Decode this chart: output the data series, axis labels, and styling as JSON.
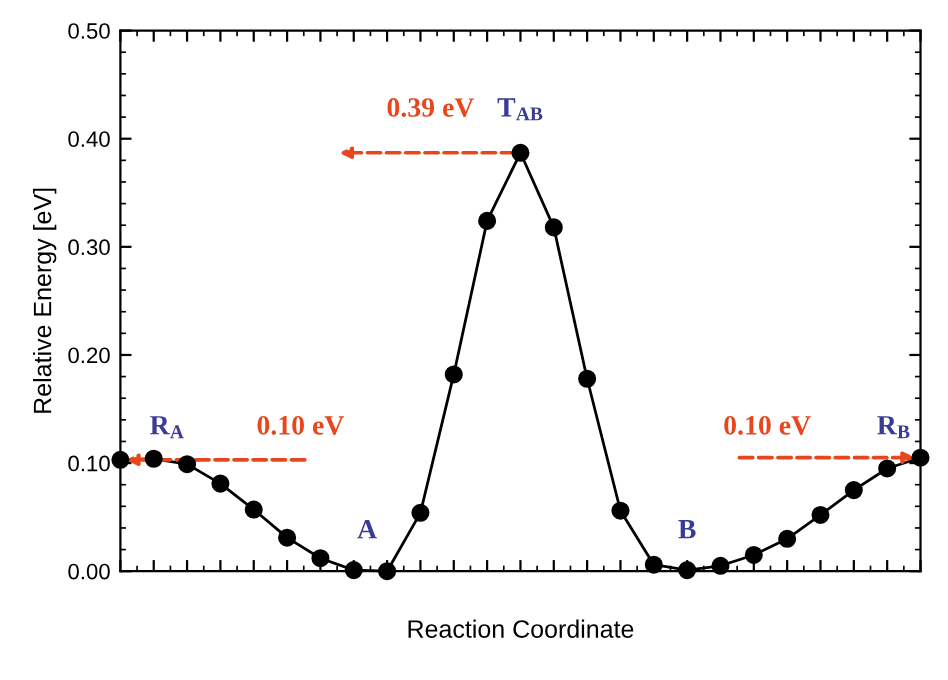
{
  "chart_data": {
    "type": "line",
    "xlabel": "Reaction Coordinate",
    "ylabel": "Relative Energy [eV]",
    "categories": [
      null,
      null,
      null,
      null,
      null,
      null,
      null,
      null,
      null,
      null,
      null,
      null,
      null,
      null,
      null,
      null,
      null,
      null,
      null,
      null,
      null,
      null,
      null,
      null,
      null
    ],
    "series": [
      {
        "color": "#000000",
        "marker": "circle",
        "line_style": "solid",
        "values": [
          0.103,
          0.104,
          0.099,
          0.081,
          0.057,
          0.031,
          0.012,
          0.001,
          0.0,
          0.054,
          0.182,
          0.324,
          0.387,
          0.318,
          0.178,
          0.056,
          0.006,
          0.001,
          0.005,
          0.015,
          0.03,
          0.052,
          0.075,
          0.095,
          0.105
        ]
      }
    ],
    "ylim": [
      0,
      0.5
    ],
    "yticks": [
      {
        "value": 0,
        "label": "0.00"
      },
      {
        "value": 0.1,
        "label": "0.10"
      },
      {
        "value": 0.2,
        "label": "0.20"
      },
      {
        "value": 0.3,
        "label": "0.30"
      },
      {
        "value": 0.4,
        "label": "0.40"
      },
      {
        "value": 0.5,
        "label": "0.50"
      }
    ],
    "tick_labels": "y",
    "grid": false,
    "legend": false,
    "annotations": [
      "T$_{AB}$",
      "0.39 eV",
      "R$_{A}$",
      "0.10 eV",
      "A",
      "B",
      "0.10 eV",
      "R$_{B}$"
    ]
  }
}
